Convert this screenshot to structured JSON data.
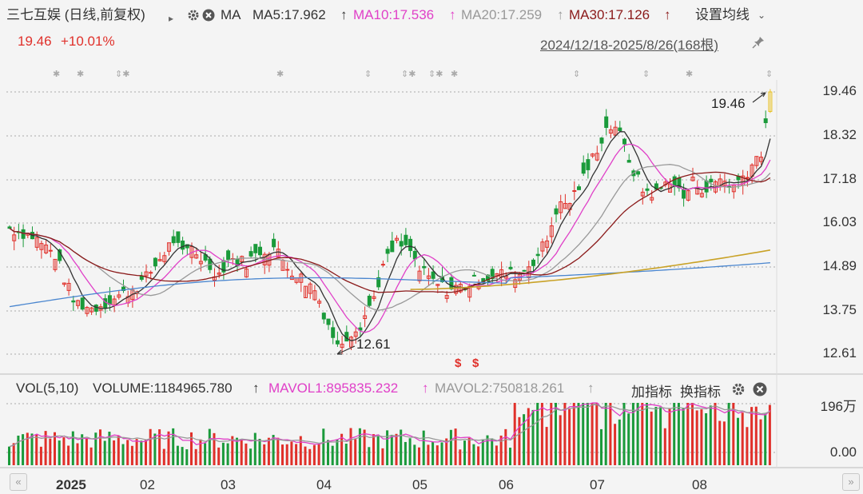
{
  "header": {
    "stock_title": "三七互娱 (日线,前复权)",
    "ma_label": "MA",
    "ma5": "MA5:17.962",
    "ma10": "MA10:17.536",
    "ma20": "MA20:17.259",
    "ma30": "MA30:17.126",
    "settings_label": "设置均线",
    "arrow_up": "↑"
  },
  "price_info": {
    "price": "19.46",
    "change": "+10.01%"
  },
  "date_range": "2024/12/18-2025/8/26(168根)",
  "y_axis": [
    "19.46",
    "18.32",
    "17.18",
    "16.03",
    "14.89",
    "13.75",
    "12.61"
  ],
  "annotations": {
    "high": "19.46",
    "low": "12.61",
    "s_mark": "$"
  },
  "volume": {
    "title": "VOL(5,10)",
    "volume": "VOLUME:1184965.780",
    "mavol1": "MAVOL1:895835.232",
    "mavol2": "MAVOL2:750818.261",
    "add_indicator": "加指标",
    "switch_indicator": "换指标",
    "y_top": "196万",
    "y_bottom": "0.00"
  },
  "x_axis": [
    "2025",
    "02",
    "03",
    "04",
    "05",
    "06",
    "07",
    "08"
  ],
  "colors": {
    "up": "#e0302a",
    "down": "#1a9a3a",
    "ma5": "#333333",
    "ma10": "#e040c8",
    "ma20": "#999999",
    "ma30": "#8b1a1a",
    "ma_long1": "#4a86cf",
    "ma_long2": "#c9a227"
  }
}
